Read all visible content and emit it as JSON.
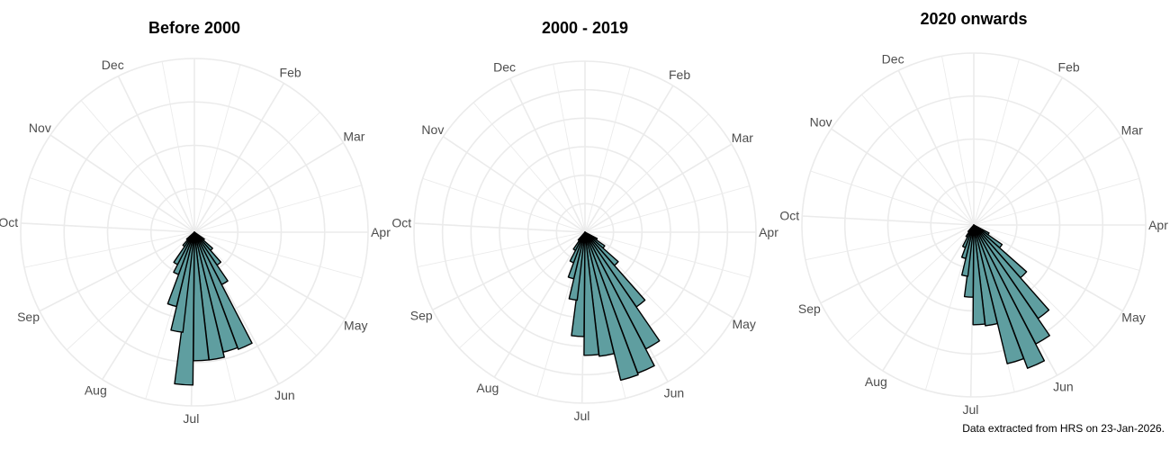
{
  "caption": "Data extracted from HRS on 23-Jan-2026.",
  "style": {
    "bar_fill": "#5F9EA0",
    "bar_stroke": "#000000",
    "grid_color": "#EBEBEB",
    "label_color": "#4D4D4D"
  },
  "chart_data": [
    {
      "type": "bar",
      "subtype": "polar (rose) histogram",
      "title": "Before 2000",
      "xlabel": "",
      "ylabel": "",
      "theta_labels": [
        "Feb",
        "Mar",
        "Apr",
        "May",
        "Jun",
        "Jul",
        "Aug",
        "Sep",
        "Oct",
        "Nov",
        "Dec"
      ],
      "theta_label_angles_deg": [
        31,
        59,
        90,
        120,
        151,
        181,
        212,
        243,
        273,
        304,
        334
      ],
      "grid": true,
      "rings": 4,
      "bin_width_deg": 6.9,
      "bars": [
        {
          "angle": 128,
          "r": 0.07
        },
        {
          "angle": 135,
          "r": 0.14
        },
        {
          "angle": 142,
          "r": 0.23
        },
        {
          "angle": 149,
          "r": 0.34
        },
        {
          "angle": 156,
          "r": 0.72
        },
        {
          "angle": 163,
          "r": 0.71
        },
        {
          "angle": 170,
          "r": 0.74
        },
        {
          "angle": 177,
          "r": 0.74
        },
        {
          "angle": 184,
          "r": 0.88
        },
        {
          "angle": 190,
          "r": 0.58
        },
        {
          "angle": 197,
          "r": 0.44
        },
        {
          "angle": 204,
          "r": 0.26
        },
        {
          "angle": 211,
          "r": 0.21
        },
        {
          "angle": 218,
          "r": 0.1
        },
        {
          "angle": 225,
          "r": 0.06
        }
      ]
    },
    {
      "type": "bar",
      "subtype": "polar (rose) histogram",
      "title": "2000 - 2019",
      "xlabel": "",
      "ylabel": "",
      "theta_labels": [
        "Feb",
        "Mar",
        "Apr",
        "May",
        "Jun",
        "Jul",
        "Aug",
        "Sep",
        "Oct",
        "Nov",
        "Dec"
      ],
      "theta_label_angles_deg": [
        31,
        59,
        90,
        120,
        151,
        181,
        212,
        243,
        273,
        304,
        334
      ],
      "grid": true,
      "rings": 6,
      "bin_width_deg": 6.9,
      "bars": [
        {
          "angle": 121,
          "r": 0.08
        },
        {
          "angle": 128,
          "r": 0.14
        },
        {
          "angle": 135,
          "r": 0.26
        },
        {
          "angle": 142,
          "r": 0.53
        },
        {
          "angle": 149,
          "r": 0.77
        },
        {
          "angle": 156,
          "r": 0.88
        },
        {
          "angle": 163,
          "r": 0.89
        },
        {
          "angle": 170,
          "r": 0.73
        },
        {
          "angle": 177,
          "r": 0.72
        },
        {
          "angle": 184,
          "r": 0.61
        },
        {
          "angle": 190,
          "r": 0.4
        },
        {
          "angle": 197,
          "r": 0.28
        },
        {
          "angle": 204,
          "r": 0.19
        },
        {
          "angle": 211,
          "r": 0.12
        },
        {
          "angle": 218,
          "r": 0.06
        }
      ]
    },
    {
      "type": "bar",
      "subtype": "polar (rose) histogram",
      "title": "2020 onwards",
      "xlabel": "",
      "ylabel": "",
      "theta_labels": [
        "Feb",
        "Mar",
        "Apr",
        "May",
        "Jun",
        "Jul",
        "Aug",
        "Sep",
        "Oct",
        "Nov",
        "Dec"
      ],
      "theta_label_angles_deg": [
        31,
        59,
        90,
        120,
        151,
        181,
        212,
        243,
        273,
        304,
        334
      ],
      "grid": true,
      "rings": 4,
      "bin_width_deg": 6.9,
      "bars": [
        {
          "angle": 121,
          "r": 0.1
        },
        {
          "angle": 128,
          "r": 0.2
        },
        {
          "angle": 135,
          "r": 0.41
        },
        {
          "angle": 142,
          "r": 0.66
        },
        {
          "angle": 149,
          "r": 0.78
        },
        {
          "angle": 156,
          "r": 0.89
        },
        {
          "angle": 163,
          "r": 0.83
        },
        {
          "angle": 170,
          "r": 0.59
        },
        {
          "angle": 177,
          "r": 0.58
        },
        {
          "angle": 184,
          "r": 0.42
        },
        {
          "angle": 190,
          "r": 0.3
        },
        {
          "angle": 197,
          "r": 0.2
        },
        {
          "angle": 204,
          "r": 0.14
        },
        {
          "angle": 211,
          "r": 0.08
        },
        {
          "angle": 218,
          "r": 0.05
        }
      ]
    }
  ]
}
